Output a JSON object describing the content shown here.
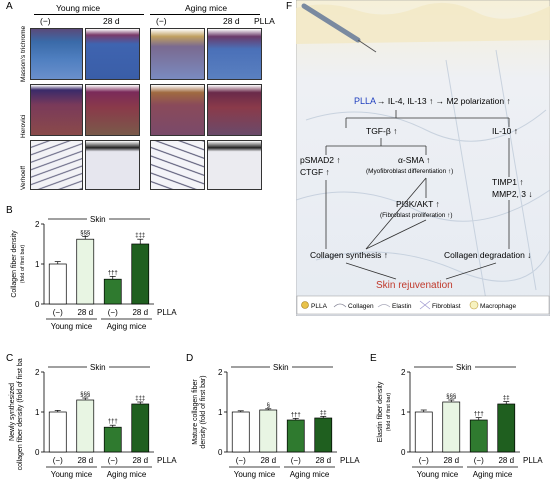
{
  "panelA": {
    "letter": "A",
    "young_header": "Young mice",
    "aging_header": "Aging mice",
    "col_minus": "(−)",
    "col_28d": "28 d",
    "plla": "PLLA",
    "row_labels": [
      "Masson's trichrome",
      "Herovici",
      "Verhoeff"
    ]
  },
  "panelF": {
    "letter": "F",
    "plla": "PLLA",
    "il4": "→ IL-4, IL-13 ↑ → M2 polarization ↑",
    "tgf": "TGF-β ↑",
    "il10": "IL-10 ↑",
    "psmad": "pSMAD2 ↑",
    "ctgf": "CTGF ↑",
    "asma": "α-SMA ↑",
    "asma_sub": "(Myofibroblast differentiation ↑)",
    "timp": "TIMP1 ↑",
    "mmp": "MMP2, 3 ↓",
    "pi3k": "PI3K/AKT ↑",
    "pi3k_sub": "(Fibroblast proliferation ↑)",
    "synth": "Collagen synthesis ↑",
    "degr": "Collagen degradation ↓",
    "rejuv": "Skin rejuvenation",
    "legend": [
      "PLLA",
      "Collagen",
      "Elastin",
      "Fibroblast",
      "Macrophage"
    ],
    "accent_red": "#c0392b",
    "accent_blue": "#1f3fbf"
  },
  "common": {
    "skin": "Skin",
    "minus": "(−)",
    "d28": "28 d",
    "plla": "PLLA",
    "young": "Young mice",
    "aging": "Aging mice",
    "light_fill": "#e8f5e3",
    "dark_fill": "#1f5f1f"
  },
  "chart_data": [
    {
      "type": "bar",
      "panel": "B",
      "ylabel": "Collagen fiber density",
      "ylabel_sub": "(fold of first bar)",
      "title": "Skin",
      "categories": [
        "(−)",
        "28 d",
        "(−)",
        "28 d"
      ],
      "groups": [
        "Young mice",
        "Aging mice"
      ],
      "values": [
        1.0,
        1.62,
        0.62,
        1.5
      ],
      "errors": [
        0.06,
        0.07,
        0.07,
        0.12
      ],
      "annotations": [
        "",
        "§§§",
        "†††",
        "‡‡‡"
      ],
      "ylim": [
        0,
        2
      ],
      "yticks": [
        "0",
        "1",
        "2"
      ]
    },
    {
      "type": "bar",
      "panel": "C",
      "ylabel": "Newly synthesized collagen fiber density",
      "ylabel_sub": "(fold of first bar)",
      "title": "Skin",
      "categories": [
        "(−)",
        "28 d",
        "(−)",
        "28 d"
      ],
      "groups": [
        "Young mice",
        "Aging mice"
      ],
      "values": [
        1.0,
        1.3,
        0.62,
        1.2
      ],
      "errors": [
        0.04,
        0.05,
        0.05,
        0.05
      ],
      "annotations": [
        "",
        "§§§",
        "†††",
        "‡‡‡"
      ],
      "ylim": [
        0,
        2
      ],
      "yticks": [
        "0",
        "1",
        "2"
      ]
    },
    {
      "type": "bar",
      "panel": "D",
      "ylabel": "Mature collagen fiber density",
      "ylabel_sub": "(fold of first bar)",
      "title": "Skin",
      "categories": [
        "(−)",
        "28 d",
        "(−)",
        "28 d"
      ],
      "groups": [
        "Young mice",
        "Aging mice"
      ],
      "values": [
        1.0,
        1.05,
        0.8,
        0.85
      ],
      "errors": [
        0.03,
        0.03,
        0.04,
        0.04
      ],
      "annotations": [
        "",
        "§",
        "†††",
        "‡‡"
      ],
      "ylim": [
        0,
        2
      ],
      "yticks": [
        "0",
        "1",
        "2"
      ]
    },
    {
      "type": "bar",
      "panel": "E",
      "ylabel": "Elastin fiber density",
      "ylabel_sub": "(fold of first bar)",
      "title": "Skin",
      "categories": [
        "(−)",
        "28 d",
        "(−)",
        "28 d"
      ],
      "groups": [
        "Young mice",
        "Aging mice"
      ],
      "values": [
        1.0,
        1.25,
        0.8,
        1.2
      ],
      "errors": [
        0.05,
        0.05,
        0.06,
        0.06
      ],
      "annotations": [
        "",
        "§§§",
        "†††",
        "‡‡"
      ],
      "ylim": [
        0,
        2
      ],
      "yticks": [
        "0",
        "1",
        "2"
      ]
    }
  ]
}
